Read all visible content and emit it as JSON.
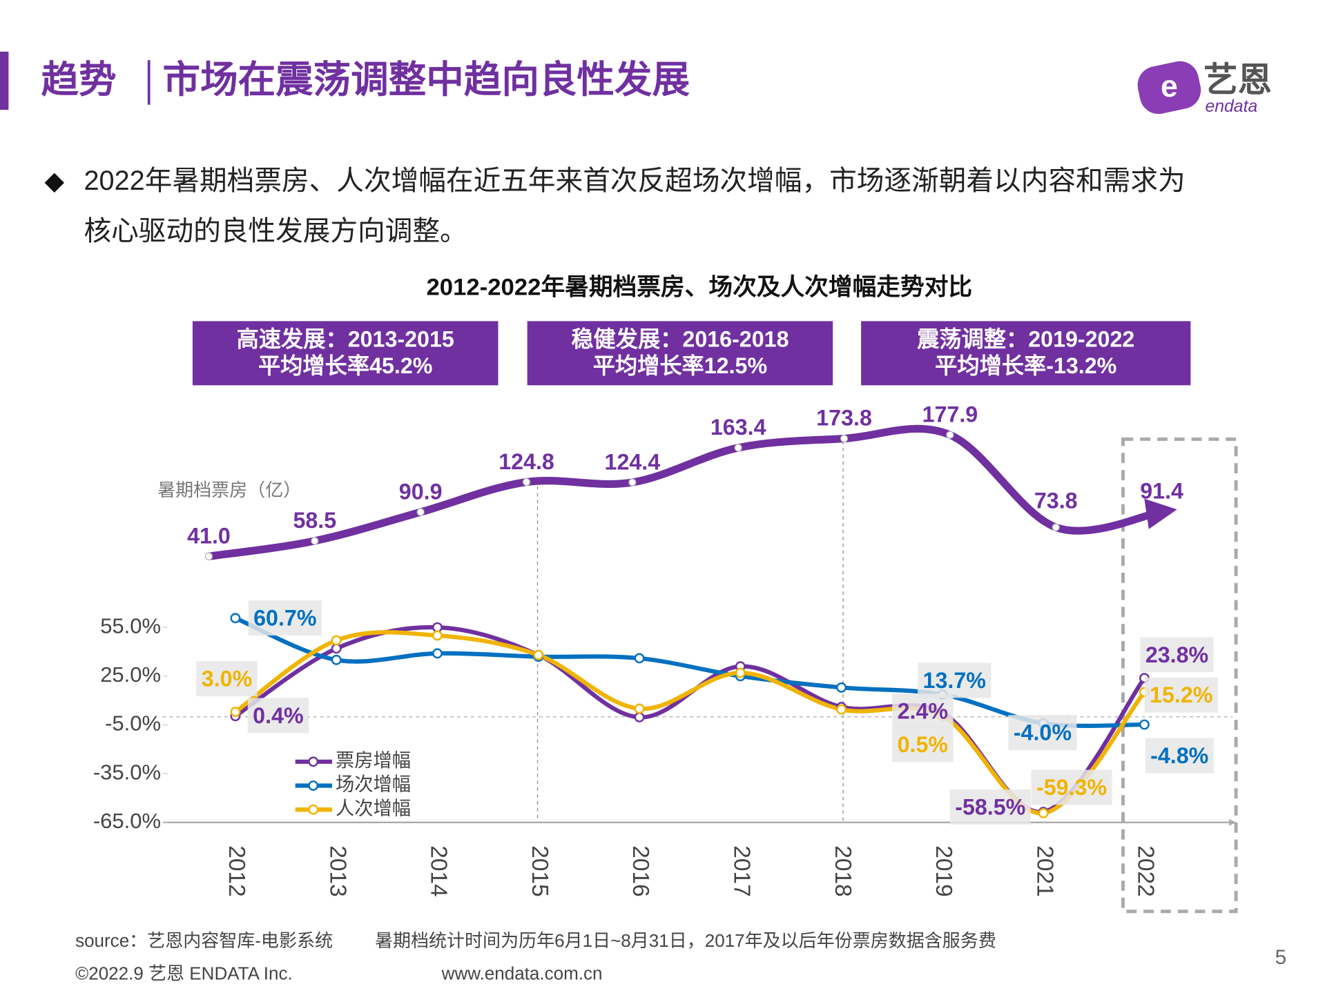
{
  "header": {
    "tag": "趋势",
    "title": "市场在震荡调整中趋向良性发展",
    "logo_cn": "艺恩",
    "logo_en": "endata"
  },
  "bullet": {
    "lines": [
      "2022年暑期档票房、人次增幅在近五年来首次反超场次增幅，市场逐渐朝着以内容和需求为",
      "核心驱动的良性发展方向调整。"
    ]
  },
  "chart_data": {
    "type": "line",
    "title": "2012-2022年暑期档票房、场次及人次增幅走势对比",
    "annotations": [
      {
        "title": "高速发展：2013-2015",
        "text": "平均增长率45.2%"
      },
      {
        "title": "稳健发展：2016-2018",
        "text": "平均增长率12.5%"
      },
      {
        "title": "震荡调整：2019-2022",
        "text": "平均增长率-13.2%"
      }
    ],
    "categories": [
      "2012",
      "2013",
      "2014",
      "2015",
      "2016",
      "2017",
      "2018",
      "2019",
      "2021",
      "2022"
    ],
    "series": [
      {
        "name": "暑期档票房（亿）",
        "axis": "y2",
        "color": "#7030a0",
        "values": [
          41.0,
          58.5,
          90.9,
          124.8,
          124.4,
          163.4,
          173.8,
          177.9,
          73.8,
          91.4
        ],
        "value_labels": [
          "41.0",
          "58.5",
          "90.9",
          "124.8",
          "124.4",
          "163.4",
          "173.8",
          "177.9",
          "73.8",
          "91.4"
        ]
      },
      {
        "name": "票房增幅",
        "color": "#7030a0",
        "values": [
          0.4,
          42,
          55,
          38,
          -0.3,
          31,
          6,
          2.4,
          -58.5,
          23.8
        ],
        "value_labels": [
          "0.4%",
          null,
          null,
          null,
          null,
          null,
          null,
          "2.4%",
          "-58.5%",
          "23.8%"
        ]
      },
      {
        "name": "场次增幅",
        "color": "#0070c0",
        "values": [
          60.7,
          35,
          39,
          37,
          36,
          25,
          18,
          13.7,
          -4.0,
          -4.8
        ],
        "value_labels": [
          "60.7%",
          null,
          null,
          null,
          null,
          null,
          null,
          "13.7%",
          "-4.0%",
          "-4.8%"
        ]
      },
      {
        "name": "人次增幅",
        "color": "#f0b400",
        "values": [
          3.0,
          47,
          50,
          38,
          5,
          27,
          4.5,
          0.5,
          -59.3,
          15.2
        ],
        "value_labels": [
          "3.0%",
          null,
          null,
          null,
          null,
          null,
          null,
          "0.5%",
          "-59.3%",
          "15.2%"
        ]
      }
    ],
    "ylim": [
      -65,
      55
    ],
    "yticks": [
      {
        "value": 55,
        "label": "55.0%"
      },
      {
        "value": 25,
        "label": "25.0%"
      },
      {
        "value": -5,
        "label": "-5.0%"
      },
      {
        "value": -35,
        "label": "-35.0%"
      },
      {
        "value": -65,
        "label": "-65.0%"
      }
    ],
    "legend": "lower-left"
  },
  "footer": {
    "source": "source：艺恩内容智库-电影系统",
    "note": "暑期档统计时间为历年6月1日~8月31日，2017年及以后年份票房数据含服务费",
    "copyright": "©2022.9 艺恩 ENDATA Inc.",
    "url": "www.endata.com.cn",
    "page": 5
  }
}
